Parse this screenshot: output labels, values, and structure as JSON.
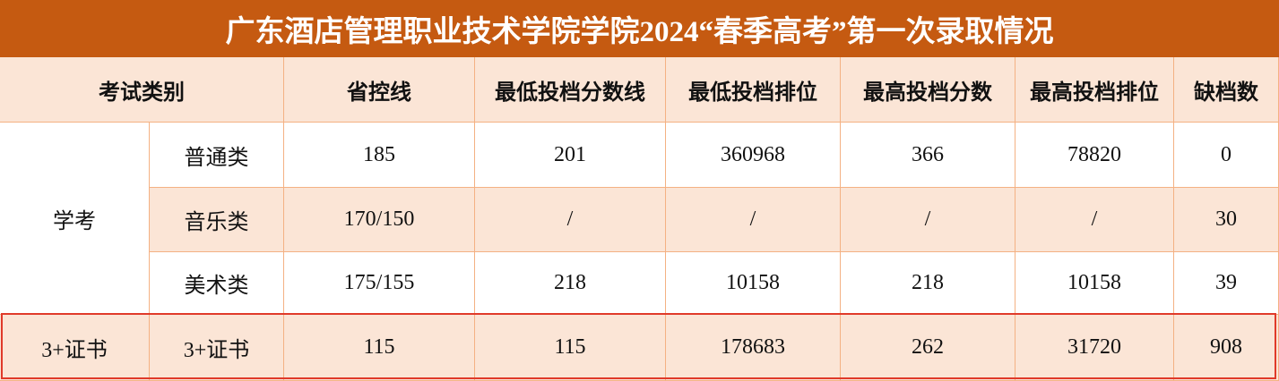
{
  "header": {
    "title": "广东酒店管理职业技术学院学院2024“春季高考”第一次录取情况"
  },
  "table": {
    "columns": [
      "考试类别",
      "省控线",
      "最低投档分数线",
      "最低投档排位",
      "最高投档分数",
      "最高投档排位",
      "缺档数"
    ],
    "groups": [
      {
        "label": "学考",
        "rows": [
          {
            "label": "普通类",
            "cells": [
              185,
              201,
              360968,
              366,
              78820,
              0
            ]
          },
          {
            "label": "音乐类",
            "cells": [
              "170/150",
              "/",
              "/",
              "/",
              "/",
              30
            ]
          },
          {
            "label": "美术类",
            "cells": [
              "175/155",
              218,
              10158,
              218,
              10158,
              39
            ]
          }
        ]
      },
      {
        "label": "3+证书",
        "rows": [
          {
            "label": "3+证书",
            "cells": [
              115,
              115,
              178683,
              262,
              31720,
              908
            ]
          }
        ]
      }
    ]
  }
}
